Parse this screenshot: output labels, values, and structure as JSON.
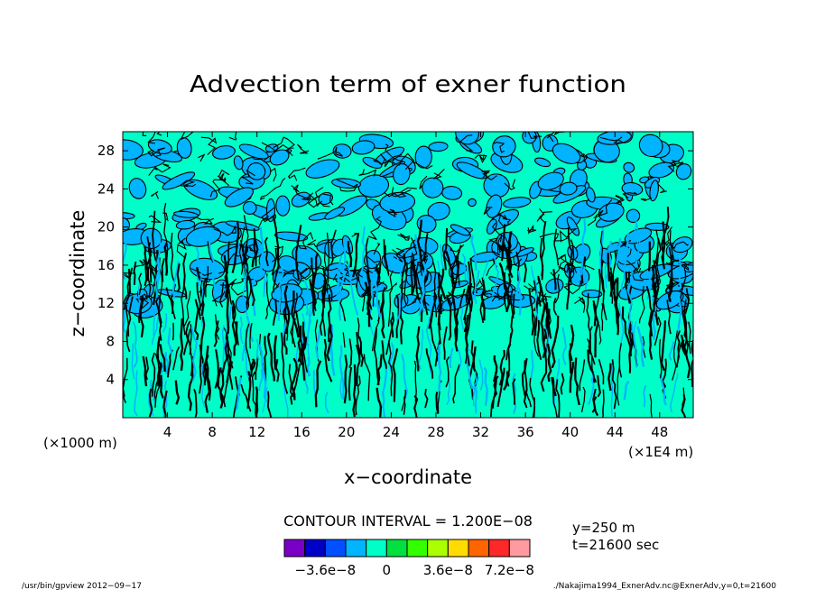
{
  "chart_data": {
    "type": "heatmap",
    "title": "Advection term of exner function",
    "xlabel": "x−coordinate",
    "ylabel": "z−coordinate",
    "x_scale_note": "(×1E4 m)",
    "y_scale_note": "(×1000 m)",
    "xlim": [
      0,
      51
    ],
    "ylim": [
      0,
      30
    ],
    "x_ticks": [
      4,
      8,
      12,
      16,
      20,
      24,
      28,
      32,
      36,
      40,
      44,
      48
    ],
    "y_ticks": [
      4,
      8,
      12,
      16,
      20,
      24,
      28
    ],
    "contour_interval_text": "CONTOUR INTERVAL = 1.200E−08",
    "contour_interval": 1.2e-08,
    "info": [
      "y=250 m",
      "t=21600 sec"
    ],
    "colorbar": {
      "colors": [
        "#7a00c8",
        "#0000c8",
        "#0050ff",
        "#00b4ff",
        "#00ffc8",
        "#00e040",
        "#32ff00",
        "#aaff00",
        "#ffdc00",
        "#ff6400",
        "#ff2828",
        "#ff9aa0"
      ],
      "tick_labels": [
        "−3.6e−8",
        "0",
        "3.6e−8",
        "7.2e−8"
      ],
      "tick_values": [
        -3.6e-08,
        0,
        3.6e-08,
        7.2e-08
      ],
      "min": -6e-08,
      "step": 1.2e-08
    },
    "field_colors": {
      "positive_small": "#00ffc8",
      "negative_small": "#00b4ff",
      "contour_line": "#000000"
    }
  },
  "footer": {
    "left": "/usr/bin/gpview   2012−09−17",
    "right": "./Nakajima1994_ExnerAdv.nc@ExnerAdv,y=0,t=21600"
  }
}
